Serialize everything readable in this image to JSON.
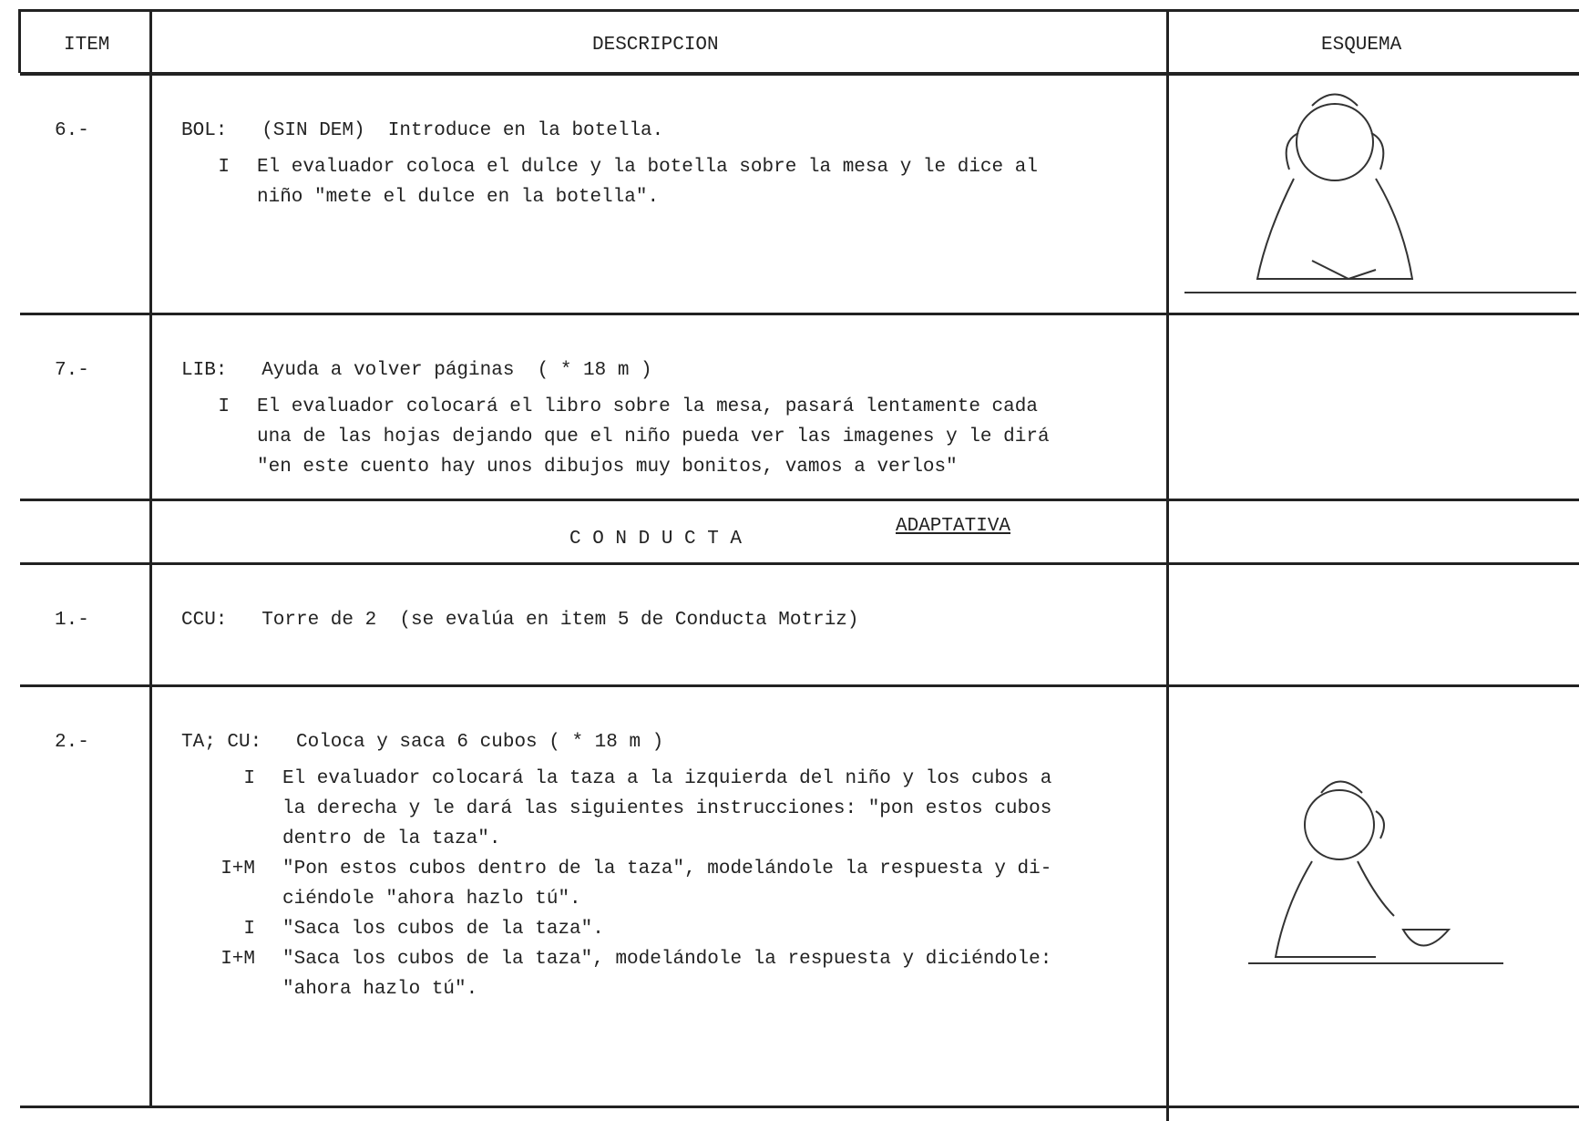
{
  "header": {
    "item": "ITEM",
    "description": "DESCRIPCION",
    "schema": "ESQUEMA"
  },
  "rows": [
    {
      "item": "6.-",
      "head": {
        "code": "BOL:",
        "text": "(SIN DEM)  Introduce en la botella."
      },
      "lines": [
        {
          "label": "I",
          "text": "El evaluador coloca el dulce y la botella sobre la mesa y le dice al"
        },
        {
          "text": "niño \"mete el dulce en la botella\"."
        }
      ]
    },
    {
      "item": "7.-",
      "head": {
        "code": "LIB:",
        "text": "Ayuda a volver páginas  ( * 18 m )"
      },
      "lines": [
        {
          "label": "I",
          "text": "El evaluador colocará el libro sobre la mesa, pasará lentamente cada"
        },
        {
          "text": "una de las hojas dejando que el niño pueda ver las imagenes y le dirá"
        },
        {
          "text": "\"en este cuento hay unos dibujos muy bonitos, vamos a verlos\""
        }
      ]
    }
  ],
  "section": {
    "title": "C O N D U C T A",
    "subtitle": "ADAPTATIVA"
  },
  "rows2": [
    {
      "item": "1.-",
      "head": {
        "code": "CCU:",
        "text": "Torre de 2  (se evalúa en item 5 de Conducta Motriz)"
      },
      "lines": []
    },
    {
      "item": "2.-",
      "head": {
        "code": "TA; CU:",
        "text": "Coloca y saca 6 cubos ( * 18 m )"
      },
      "lines": [
        {
          "label": "I",
          "text": "El evaluador colocará la taza a la izquierda del niño y los cubos a"
        },
        {
          "text": "la derecha y le dará las siguientes instrucciones: \"pon estos cubos"
        },
        {
          "text": "dentro de la taza\"."
        },
        {
          "label": "I+M",
          "text": "\"Pon estos cubos dentro de la taza\", modelándole la respuesta y di-"
        },
        {
          "text": "ciéndole \"ahora hazlo tú\"."
        },
        {
          "label": "I",
          "text": "\"Saca los cubos de la taza\"."
        },
        {
          "label": "I+M",
          "text": "\"Saca los cubos de la taza\", modelándole la respuesta y diciéndole:"
        },
        {
          "text": "\"ahora hazlo tú\"."
        }
      ]
    }
  ]
}
